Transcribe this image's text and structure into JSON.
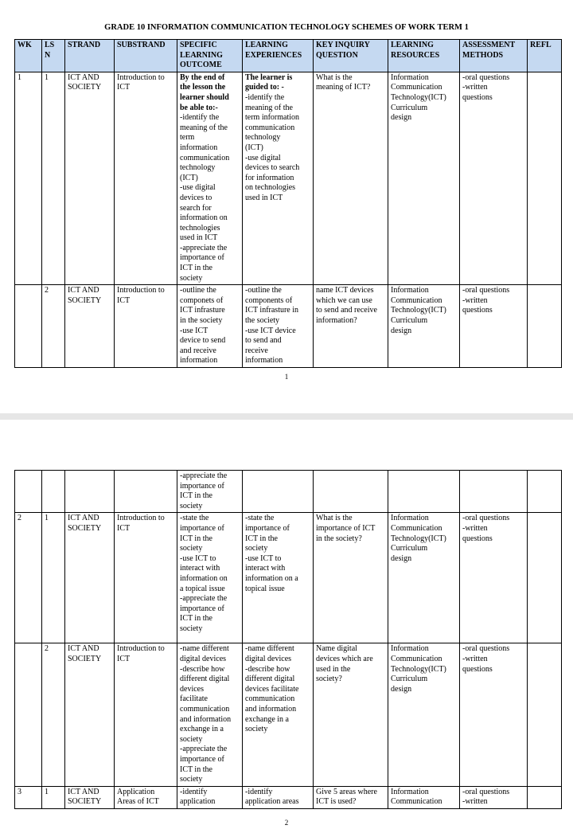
{
  "title": "GRADE 10 INFORMATION COMMUNICATION TECHNOLOGY SCHEMES OF WORK TERM 1",
  "header_color": "#c5d9f1",
  "columns": [
    "WK",
    "LS\nN",
    "STRAND",
    "SUBSTRAND",
    "SPECIFIC\nLEARNING\nOUTCOME",
    "LEARNING\nEXPERIENCES",
    "KEY INQUIRY\nQUESTION",
    "LEARNING\nRESOURCES",
    "ASSESSMENT\nMETHODS",
    "REFL"
  ],
  "page1": {
    "page_number": "1",
    "rows": [
      {
        "intros": {
          "4": "By the end of\nthe lesson the\nlearner should\nbe able to:-",
          "5": "The learner is\nguided to: -"
        },
        "cells": [
          "1",
          "1",
          "ICT AND\nSOCIETY",
          "Introduction to\nICT",
          "-identify the\nmeaning of the\nterm\ninformation\ncommunication\ntechnology\n(ICT)\n-use digital\ndevices to\nsearch for\ninformation  on\ntechnologies\nused in ICT\n-appreciate the\nimportance of\nICT in the\nsociety",
          " -identify the\nmeaning of the\nterm information\ncommunication\ntechnology\n(ICT)\n-use digital\ndevices to search\nfor information\non technologies\nused in ICT",
          "What is the\nmeaning of ICT?",
          "Information\nCommunication\nTechnology(ICT)\nCurriculum\ndesign",
          "-oral questions\n-written\nquestions",
          ""
        ]
      },
      {
        "cells": [
          "",
          "2",
          "ICT AND\nSOCIETY",
          "Introduction to\nICT",
          "-outline the\ncomponets of\nICT infrasture\nin the society\n-use ICT\ndevice to send\nand receive\ninformation",
          "-outline the\ncomponents of\nICT infrasture in\nthe society\n-use ICT  device\nto send and\nreceive\ninformation",
          "name ICT devices\nwhich we can use\nto send and receive\ninformation?",
          "Information\nCommunication\nTechnology(ICT)\nCurriculum\ndesign",
          "-oral questions\n-written\nquestions",
          ""
        ]
      }
    ]
  },
  "page2": {
    "page_number": "2",
    "rows": [
      {
        "cells": [
          "",
          "",
          "",
          "",
          "-appreciate the\nimportance of\nICT in the\nsociety",
          "",
          "",
          "",
          "",
          ""
        ]
      },
      {
        "cells": [
          "2",
          "1",
          "ICT AND\nSOCIETY",
          "Introduction to\nICT",
          "-state the\nimportance of\nICT in  the\nsociety\n-use ICT to\ninteract with\ninformation on\na topical issue\n-appreciate the\nimportance of\nICT in the\nsociety",
          "-state the\nimportance of\nICT in  the\nsociety\n-use ICT to\ninteract with\ninformation on a\ntopical issue",
          "What is the\nimportance of ICT\nin  the society?",
          "Information\nCommunication\nTechnology(ICT)\nCurriculum\ndesign",
          "-oral questions\n-written\nquestions",
          ""
        ]
      },
      {
        "cells": [
          "",
          "2",
          "ICT AND\nSOCIETY",
          "Introduction to\nICT",
          "-name different\ndigital devices\n-describe how\ndifferent digital\ndevices\nfacilitate\ncommunication\nand information\nexchange in a\nsociety\n-appreciate the\nimportance of\nICT in the\nsociety",
          "-name different\ndigital devices\n-describe how\ndifferent digital\ndevices  facilitate\ncommunication\nand information\nexchange in a\nsociety",
          "Name digital\ndevices which are\nused in the\nsociety?",
          "Information\nCommunication\nTechnology(ICT)\nCurriculum\ndesign",
          "-oral questions\n-written\nquestions",
          ""
        ]
      },
      {
        "cells": [
          "3",
          "1",
          "ICT AND\nSOCIETY",
          "Application\nAreas of ICT",
          "-identify\napplication",
          "-identify\napplication areas",
          "Give 5 areas where\nICT is used?",
          "Information\nCommunication",
          "-oral questions\n-written",
          ""
        ]
      }
    ]
  }
}
